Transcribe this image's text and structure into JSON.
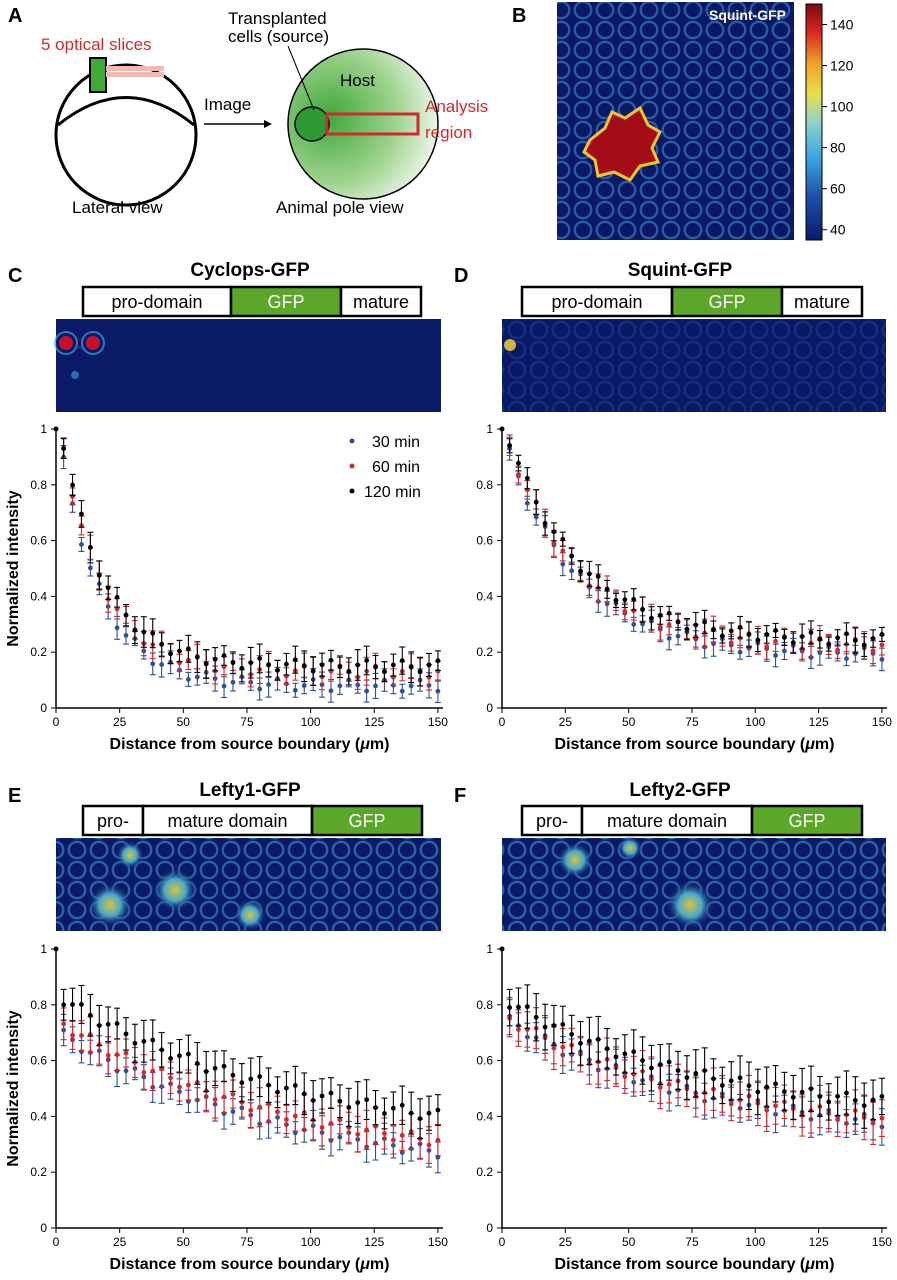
{
  "panels": [
    {
      "id": "A",
      "label": "A"
    },
    {
      "id": "B",
      "label": "B",
      "title": "Squint-GFP",
      "colorbar": {
        "ticks": [
          40,
          60,
          80,
          100,
          120,
          140
        ],
        "min": 35,
        "max": 150
      }
    },
    {
      "id": "C",
      "label": "C",
      "title": "Cyclops-GFP",
      "domains": [
        {
          "text": "pro-domain",
          "fill": "#ffffff"
        },
        {
          "text": "GFP",
          "fill": "#5aa72a"
        },
        {
          "text": "mature",
          "fill": "#ffffff"
        }
      ]
    },
    {
      "id": "D",
      "label": "D",
      "title": "Squint-GFP",
      "domains": [
        {
          "text": "pro-domain",
          "fill": "#ffffff"
        },
        {
          "text": "GFP",
          "fill": "#5aa72a"
        },
        {
          "text": "mature",
          "fill": "#ffffff"
        }
      ]
    },
    {
      "id": "E",
      "label": "E",
      "title": "Lefty1-GFP",
      "domains": [
        {
          "text": "pro-",
          "fill": "#ffffff"
        },
        {
          "text": "mature domain",
          "fill": "#ffffff"
        },
        {
          "text": "GFP",
          "fill": "#5aa72a"
        }
      ]
    },
    {
      "id": "F",
      "label": "F",
      "title": "Lefty2-GFP",
      "domains": [
        {
          "text": "pro-",
          "fill": "#ffffff"
        },
        {
          "text": "mature domain",
          "fill": "#ffffff"
        },
        {
          "text": "GFP",
          "fill": "#5aa72a"
        }
      ]
    }
  ],
  "schematic": {
    "slices": "5 optical slices",
    "transplanted_line1": "Transplanted",
    "transplanted_line2": "cells (source)",
    "host": "Host",
    "image": "Image",
    "analysis_line1": "Analysis",
    "analysis_line2": "region",
    "lateral": "Lateral view",
    "animal": "Animal pole view"
  },
  "legend": [
    {
      "name": "30 min",
      "color": "#2f4f9c"
    },
    {
      "name": "60 min",
      "color": "#d12a2e"
    },
    {
      "name": "120 min",
      "color": "#000000"
    }
  ],
  "chart_data": [
    {
      "type": "scatter",
      "panel": "C",
      "xlabel": "Distance from source boundary (μm)",
      "ylabel": "Normalized intensity",
      "xlim": [
        0,
        152
      ],
      "ylim": [
        0,
        1
      ],
      "xticks": [
        0,
        25,
        50,
        75,
        100,
        125,
        150
      ],
      "yticks": [
        0,
        0.2,
        0.4,
        0.6,
        0.8,
        1
      ],
      "curve": {
        "a": 0.8,
        "k": 0.06,
        "c": 0.12,
        "x0": 3
      },
      "series": [
        {
          "name": "30 min",
          "offset": -0.04,
          "err": 0.035
        },
        {
          "name": "60 min",
          "offset": 0.01,
          "err": 0.04
        },
        {
          "name": "120 min",
          "offset": 0.03,
          "err": 0.045
        }
      ]
    },
    {
      "type": "scatter",
      "panel": "D",
      "xlabel": "Distance from source boundary (μm)",
      "ylabel": "Normalized intensity",
      "xlim": [
        0,
        152
      ],
      "ylim": [
        0,
        1
      ],
      "xticks": [
        0,
        25,
        50,
        75,
        100,
        125,
        150
      ],
      "yticks": [
        0,
        0.2,
        0.4,
        0.6,
        0.8,
        1
      ],
      "curve": {
        "a": 0.72,
        "k": 0.035,
        "c": 0.22,
        "x0": 3
      },
      "series": [
        {
          "name": "30 min",
          "offset": -0.03,
          "err": 0.035
        },
        {
          "name": "60 min",
          "offset": 0.0,
          "err": 0.04
        },
        {
          "name": "120 min",
          "offset": 0.02,
          "err": 0.035
        }
      ]
    },
    {
      "type": "scatter",
      "panel": "E",
      "xlabel": "Distance from source boundary (μm)",
      "ylabel": "Normalized intensity",
      "xlim": [
        0,
        152
      ],
      "ylim": [
        0,
        1
      ],
      "xticks": [
        0,
        25,
        50,
        75,
        100,
        125,
        150
      ],
      "yticks": [
        0,
        0.2,
        0.4,
        0.6,
        0.8,
        1
      ],
      "curve": {
        "a": 0.52,
        "k": 0.011,
        "c": 0.25,
        "x0": 3
      },
      "series": [
        {
          "name": "30 min",
          "offset": -0.08,
          "err": 0.05
        },
        {
          "name": "60 min",
          "offset": -0.04,
          "err": 0.06
        },
        {
          "name": "120 min",
          "offset": 0.05,
          "err": 0.065
        }
      ]
    },
    {
      "type": "scatter",
      "panel": "F",
      "xlabel": "Distance from source boundary (μm)",
      "ylabel": "Normalized intensity",
      "xlim": [
        0,
        152
      ],
      "ylim": [
        0,
        1
      ],
      "xticks": [
        0,
        25,
        50,
        75,
        100,
        125,
        150
      ],
      "yticks": [
        0,
        0.2,
        0.4,
        0.6,
        0.8,
        1
      ],
      "curve": {
        "a": 0.42,
        "k": 0.013,
        "c": 0.35,
        "x0": 3
      },
      "series": [
        {
          "name": "30 min",
          "offset": -0.03,
          "err": 0.06
        },
        {
          "name": "60 min",
          "offset": -0.02,
          "err": 0.07
        },
        {
          "name": "120 min",
          "offset": 0.04,
          "err": 0.075
        }
      ]
    }
  ]
}
